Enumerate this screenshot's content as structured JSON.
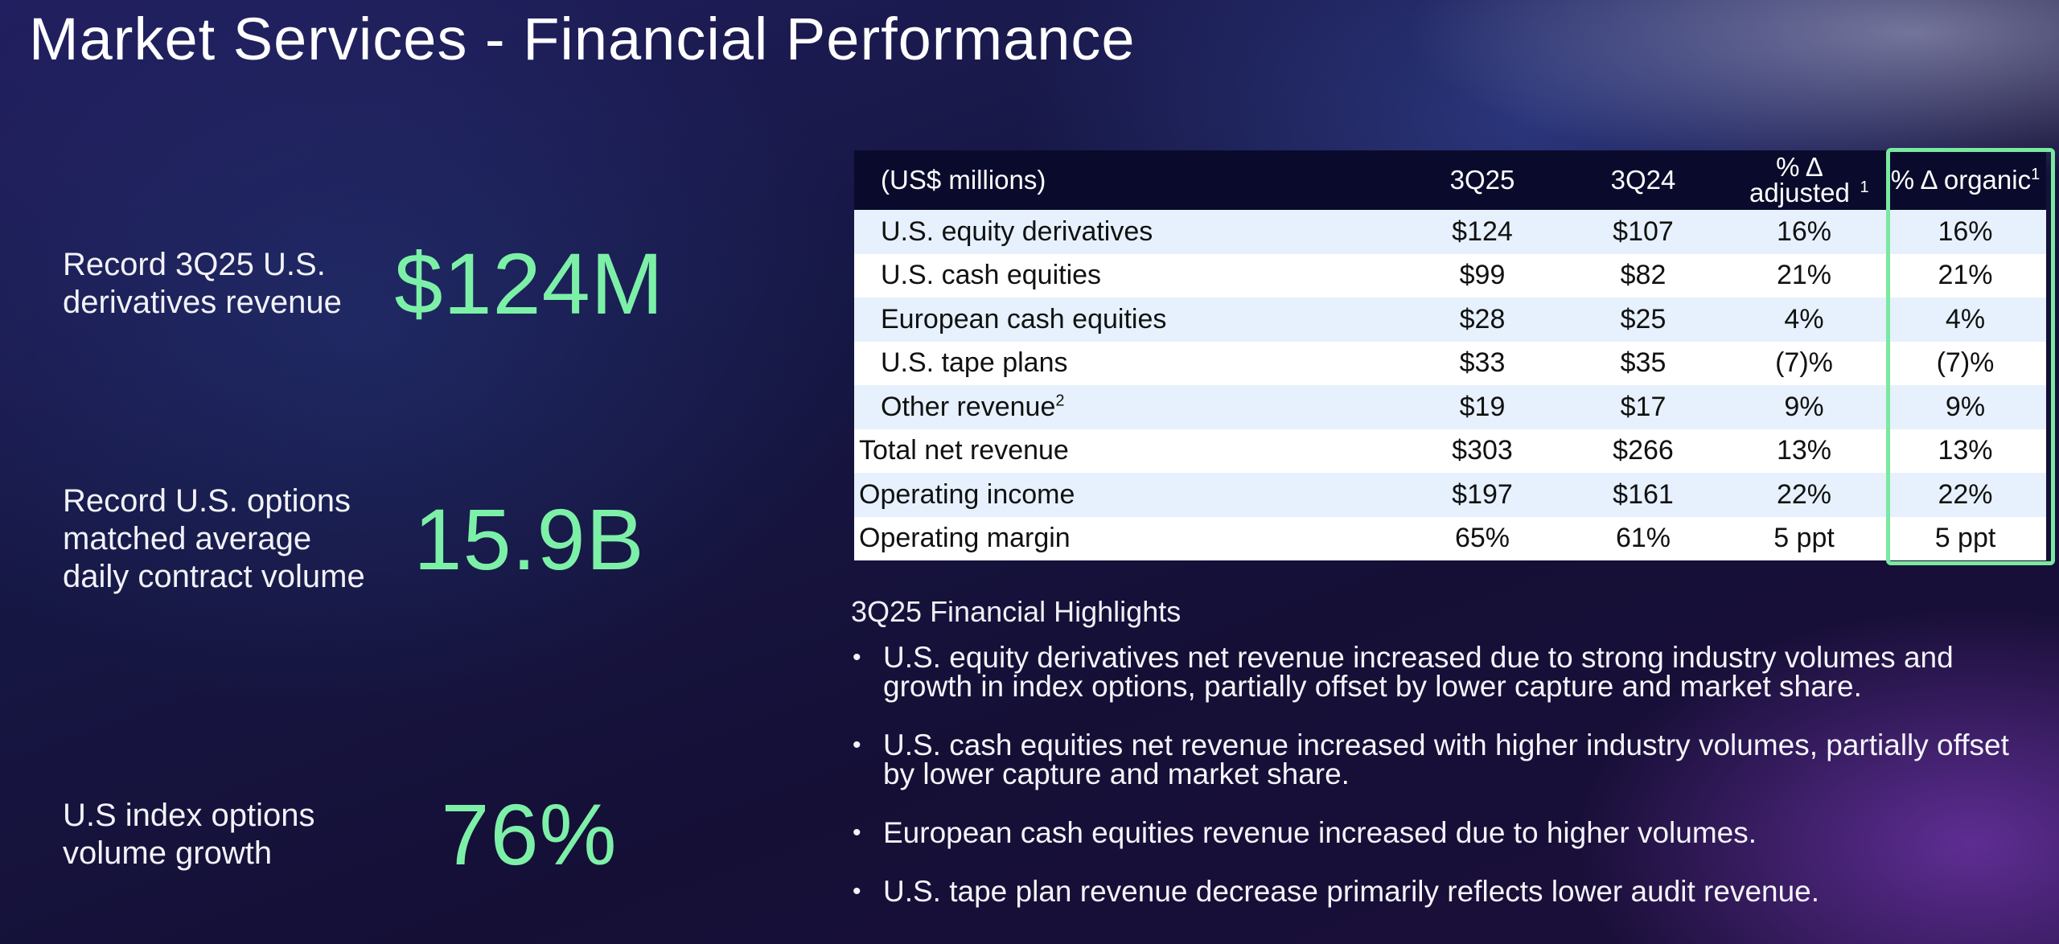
{
  "title": "Market Services - Financial Performance",
  "kpis": [
    {
      "label": "Record 3Q25 U.S. derivatives revenue",
      "value": "$124M"
    },
    {
      "label": "Record U.S. options matched average daily contract volume",
      "value": "15.9B"
    },
    {
      "label": "U.S index options volume growth",
      "value": "76%"
    }
  ],
  "table": {
    "headers": {
      "label": "(US$ millions)",
      "c1": "3Q25",
      "c2": "3Q24",
      "c3": "% Δ adjusted",
      "c3_sup": "1",
      "c4": "% Δ organic",
      "c4_sup": "1"
    },
    "rows": [
      {
        "label": "U.S. equity derivatives",
        "sup": "",
        "c1": "$124",
        "c2": "$107",
        "c3": "16%",
        "c4": "16%"
      },
      {
        "label": "U.S. cash equities",
        "sup": "",
        "c1": "$99",
        "c2": "$82",
        "c3": "21%",
        "c4": "21%"
      },
      {
        "label": "European cash equities",
        "sup": "",
        "c1": "$28",
        "c2": "$25",
        "c3": "4%",
        "c4": "4%"
      },
      {
        "label": "U.S. tape plans",
        "sup": "",
        "c1": "$33",
        "c2": "$35",
        "c3": "(7)%",
        "c4": "(7)%"
      },
      {
        "label": "Other revenue",
        "sup": "2",
        "c1": "$19",
        "c2": "$17",
        "c3": "9%",
        "c4": "9%"
      },
      {
        "label": "Total net revenue",
        "sup": "",
        "c1": "$303",
        "c2": "$266",
        "c3": "13%",
        "c4": "13%"
      },
      {
        "label": "Operating income",
        "sup": "",
        "c1": "$197",
        "c2": "$161",
        "c3": "22%",
        "c4": "22%"
      },
      {
        "label": "Operating margin",
        "sup": "",
        "c1": "65%",
        "c2": "61%",
        "c3": "5 ppt",
        "c4": "5 ppt"
      }
    ]
  },
  "highlights": {
    "title": "3Q25 Financial Highlights",
    "bullet_glyph": "•",
    "items": [
      "U.S. equity derivatives net revenue increased due to strong industry volumes and growth in index options, partially offset by lower capture and market share.",
      "U.S. cash equities net revenue increased with higher industry volumes, partially offset by lower capture and market share.",
      "European cash equities revenue increased due to higher volumes.",
      "U.S. tape plan revenue decrease primarily reflects lower audit revenue."
    ]
  },
  "colors": {
    "accent_green": "#7df0a8",
    "highlight_border": "#79e9a0",
    "table_header_bg": "#0a0b2c",
    "row_light": "#e6f1fd"
  }
}
